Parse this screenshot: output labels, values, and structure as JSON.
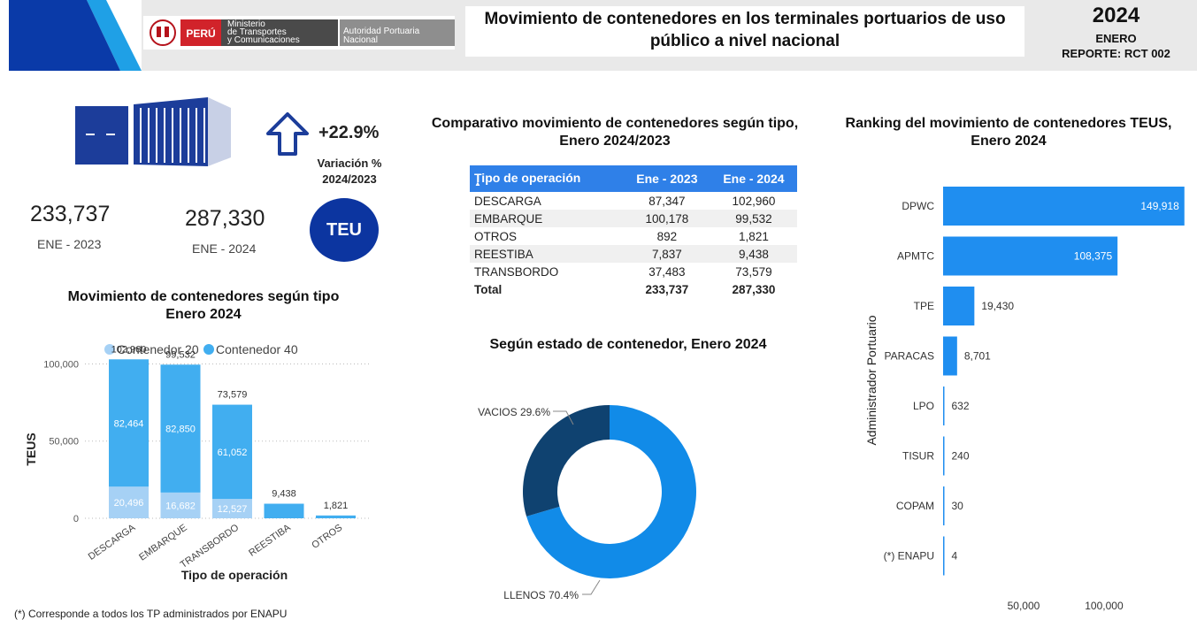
{
  "header": {
    "country": "PERÚ",
    "ministry": [
      "Ministerio",
      "de Transportes",
      "y Comunicaciones"
    ],
    "authority": [
      "Autoridad Portuaria",
      "Nacional"
    ],
    "title_line1": "Movimiento de contenedores en los terminales portuarios de uso",
    "title_line2": "público a  nivel nacional",
    "year": "2024",
    "month": "ENERO",
    "report": "REPORTE: RCT 002",
    "colors": {
      "accent": "#0a3aa8",
      "accent_light": "#1fa0e6",
      "header_bg": "#e9e9e9",
      "flag_red": "#d1232a"
    }
  },
  "kpi": {
    "arrow_icon": "up-arrow-icon",
    "variation": "+22.9%",
    "variation_label1": "Variación %",
    "variation_label2": "2024/2023",
    "value_2023": "233,737",
    "label_2023": "ENE - 2023",
    "value_2024": "287,330",
    "label_2024": "ENE - 2024",
    "badge": "TEU",
    "container_icon": "shipping-container-icon",
    "colors": {
      "navy": "#1c3d9a",
      "badge": "#0c35a0"
    }
  },
  "footnote": "(*) Corresponde a todos los TP administrados por ENAPU",
  "chart_data": [
    {
      "id": "stacked",
      "type": "bar",
      "title": "Movimiento de contenedores según tipo",
      "subtitle": "Enero 2024",
      "xlabel": "Tipo de operación",
      "ylabel": "TEUS",
      "ylim": [
        0,
        110000
      ],
      "yticks": [
        0,
        50000,
        100000
      ],
      "ytick_labels": [
        "0",
        "50,000",
        "100,000"
      ],
      "legend_position": "top",
      "categories": [
        "DESCARGA",
        "EMBARQUE",
        "TRANSBORDO",
        "REESTIBA",
        "OTROS"
      ],
      "series": [
        {
          "name": "Contenedor 20",
          "color": "#a6d1f5",
          "values": [
            20496,
            16682,
            12527,
            null,
            null
          ],
          "labels": [
            "20,496",
            "16,682",
            "12,527",
            "",
            ""
          ]
        },
        {
          "name": "Contenedor 40",
          "color": "#41aef0",
          "values": [
            82464,
            82850,
            61052,
            9438,
            1821
          ],
          "labels": [
            "82,464",
            "82,850",
            "61,052",
            "",
            ""
          ]
        }
      ],
      "totals": [
        102960,
        99532,
        73579,
        9438,
        1821
      ],
      "total_labels": [
        "102,960",
        "99,532",
        "73,579",
        "9,438",
        "1,821"
      ]
    },
    {
      "id": "comparison",
      "type": "table",
      "title": "Comparativo movimiento de contenedores según tipo,",
      "subtitle": "Enero 2024/2023",
      "columns": [
        "Tipo de operación",
        "Ene - 2023",
        "Ene - 2024"
      ],
      "rows": [
        [
          "DESCARGA",
          "87,347",
          "102,960"
        ],
        [
          "EMBARQUE",
          "100,178",
          "99,532"
        ],
        [
          "OTROS",
          "892",
          "1,821"
        ],
        [
          "REESTIBA",
          "7,837",
          "9,438"
        ],
        [
          "TRANSBORDO",
          "37,483",
          "73,579"
        ]
      ],
      "total": [
        "Total",
        "233,737",
        "287,330"
      ]
    },
    {
      "id": "donut",
      "type": "pie",
      "title": "Según estado de contenedor, Enero 2024",
      "slices": [
        {
          "label": "LLENOS",
          "value": 70.4,
          "label_text": "LLENOS 70.4%",
          "color": "#118be8"
        },
        {
          "label": "VACIOS",
          "value": 29.6,
          "label_text": "VACIOS 29.6%",
          "color": "#0f4270"
        }
      ]
    },
    {
      "id": "ranking",
      "type": "bar",
      "orientation": "horizontal",
      "title": "Ranking del movimiento de contenedores TEUS,",
      "subtitle": "Enero 2024",
      "ylabel": "Administrador Portuario",
      "xlim": [
        0,
        155000
      ],
      "xticks": [
        50000,
        100000
      ],
      "xtick_labels": [
        "50,000",
        "100,000"
      ],
      "categories": [
        "DPWC",
        "APMTC",
        "TPE",
        "PARACAS",
        "LPO",
        "TISUR",
        "COPAM",
        "(*) ENAPU"
      ],
      "values": [
        149918,
        108375,
        19430,
        8701,
        632,
        240,
        30,
        4
      ],
      "value_labels": [
        "149,918",
        "108,375",
        "19,430",
        "8,701",
        "632",
        "240",
        "30",
        "4"
      ],
      "color": "#1f8ef0"
    }
  ]
}
